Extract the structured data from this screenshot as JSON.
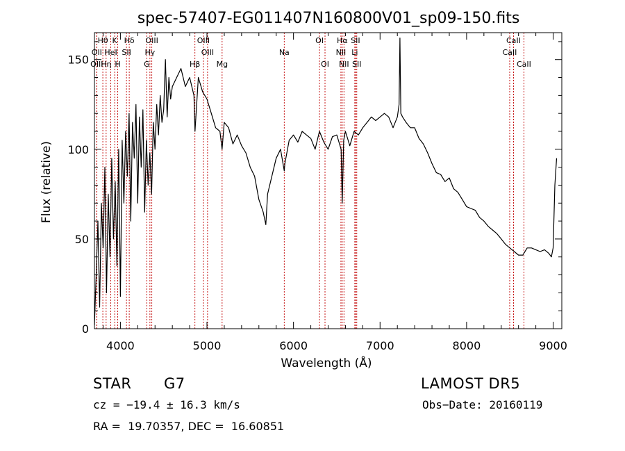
{
  "chart_data": {
    "type": "line",
    "title": "spec-57407-EG011407N160800V01_sp09-150.fits",
    "xlabel": "Wavelength (Å)",
    "ylabel": "Flux (relative)",
    "xlim": [
      3700,
      9100
    ],
    "ylim": [
      0,
      165
    ],
    "xticks": [
      4000,
      5000,
      6000,
      7000,
      8000,
      9000
    ],
    "yticks": [
      0,
      50,
      100,
      150
    ],
    "grid": false,
    "series": [
      {
        "x": [
          3700,
          3720,
          3740,
          3760,
          3780,
          3800,
          3820,
          3840,
          3860,
          3880,
          3900,
          3920,
          3940,
          3960,
          3980,
          4000,
          4020,
          4040,
          4060,
          4080,
          4100,
          4120,
          4140,
          4160,
          4180,
          4200,
          4220,
          4240,
          4260,
          4280,
          4300,
          4320,
          4340,
          4360,
          4380,
          4400,
          4420,
          4440,
          4460,
          4480,
          4500,
          4520,
          4540,
          4560,
          4580,
          4600,
          4650,
          4700,
          4750,
          4800,
          4850,
          4862,
          4900,
          4950,
          5000,
          5050,
          5100,
          5150,
          5175,
          5200,
          5250,
          5300,
          5350,
          5400,
          5450,
          5500,
          5550,
          5600,
          5650,
          5680,
          5700,
          5750,
          5800,
          5850,
          5893,
          5900,
          5950,
          6000,
          6050,
          6100,
          6150,
          6200,
          6250,
          6300,
          6350,
          6400,
          6450,
          6500,
          6550,
          6563,
          6580,
          6600,
          6650,
          6700,
          6750,
          6800,
          6850,
          6900,
          6950,
          7000,
          7050,
          7100,
          7150,
          7200,
          7220,
          7230,
          7240,
          7260,
          7300,
          7350,
          7400,
          7450,
          7500,
          7550,
          7600,
          7650,
          7700,
          7750,
          7800,
          7850,
          7900,
          7950,
          8000,
          8050,
          8100,
          8150,
          8200,
          8250,
          8300,
          8350,
          8400,
          8450,
          8500,
          8550,
          8600,
          8650,
          8700,
          8750,
          8800,
          8850,
          8900,
          8950,
          8980,
          9000,
          9020,
          9040
        ],
        "y": [
          2,
          30,
          60,
          12,
          70,
          45,
          90,
          20,
          75,
          40,
          95,
          50,
          82,
          35,
          100,
          18,
          105,
          70,
          110,
          85,
          120,
          60,
          115,
          95,
          125,
          70,
          118,
          90,
          122,
          65,
          105,
          80,
          98,
          75,
          115,
          100,
          125,
          108,
          130,
          115,
          122,
          150,
          118,
          140,
          128,
          135,
          140,
          145,
          135,
          140,
          130,
          110,
          140,
          132,
          128,
          120,
          112,
          110,
          100,
          115,
          112,
          103,
          108,
          102,
          98,
          90,
          85,
          72,
          65,
          58,
          75,
          85,
          95,
          100,
          88,
          92,
          105,
          108,
          104,
          110,
          108,
          106,
          100,
          110,
          104,
          100,
          107,
          108,
          100,
          70,
          105,
          110,
          102,
          110,
          108,
          112,
          115,
          118,
          116,
          118,
          120,
          118,
          112,
          118,
          125,
          162,
          120,
          118,
          115,
          112,
          112,
          106,
          103,
          98,
          92,
          87,
          86,
          82,
          84,
          78,
          76,
          72,
          68,
          67,
          66,
          62,
          60,
          57,
          55,
          53,
          50,
          47,
          45,
          43,
          41,
          41,
          45,
          45,
          44,
          43,
          44,
          42,
          40,
          45,
          80,
          95
        ]
      }
    ],
    "lines": [
      {
        "label": "Hθ",
        "x": 3797,
        "row": 1
      },
      {
        "label": "OII",
        "x": 3727,
        "row": 2
      },
      {
        "label": "OIII",
        "x": 3727,
        "row": 3
      },
      {
        "label": "K",
        "x": 3934,
        "row": 1
      },
      {
        "label": "HeI",
        "x": 3889,
        "row": 2
      },
      {
        "label": "Hη",
        "x": 3835,
        "row": 3
      },
      {
        "label": "Hδ",
        "x": 4102,
        "row": 1
      },
      {
        "label": "SII",
        "x": 4070,
        "row": 2
      },
      {
        "label": "H",
        "x": 3969,
        "row": 3
      },
      {
        "label": "OIII",
        "x": 4363,
        "row": 1
      },
      {
        "label": "Hγ",
        "x": 4341,
        "row": 2
      },
      {
        "label": "G",
        "x": 4305,
        "row": 3
      },
      {
        "label": "Hβ",
        "x": 4861,
        "row": 3
      },
      {
        "label": "OIII",
        "x": 4959,
        "row": 1
      },
      {
        "label": "OIII",
        "x": 5007,
        "row": 2
      },
      {
        "label": "Mg",
        "x": 5175,
        "row": 3
      },
      {
        "label": "Na",
        "x": 5893,
        "row": 2
      },
      {
        "label": "OI",
        "x": 6300,
        "row": 1
      },
      {
        "label": "OI",
        "x": 6364,
        "row": 3
      },
      {
        "label": "Hα",
        "x": 6563,
        "row": 1
      },
      {
        "label": "NII",
        "x": 6548,
        "row": 2
      },
      {
        "label": "NII",
        "x": 6583,
        "row": 3
      },
      {
        "label": "SII",
        "x": 6716,
        "row": 1
      },
      {
        "label": "Li",
        "x": 6708,
        "row": 2
      },
      {
        "label": "SII",
        "x": 6731,
        "row": 3
      },
      {
        "label": "CaII",
        "x": 8542,
        "row": 1
      },
      {
        "label": "CaII",
        "x": 8498,
        "row": 2
      },
      {
        "label": "CaII",
        "x": 8662,
        "row": 3
      }
    ]
  },
  "info": {
    "object_class": "STAR",
    "subclass": "G7",
    "survey": "LAMOST DR5",
    "cz": "cz = −19.4 ± 16.3 km/s",
    "obs_date": "Obs−Date: 20160119",
    "coords": "RA =  19.70357, DEC =  16.60851"
  }
}
